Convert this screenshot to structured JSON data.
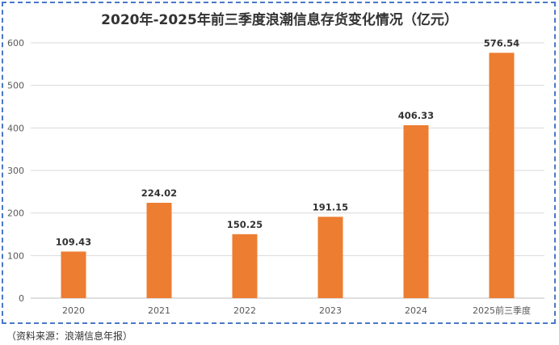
{
  "chart_data": {
    "type": "bar",
    "title": "2020年-2025年前三季度浪潮信息存货变化情况（亿元）",
    "categories": [
      "2020",
      "2021",
      "2022",
      "2023",
      "2024",
      "2025前三季度"
    ],
    "values": [
      109.43,
      224.02,
      150.25,
      191.15,
      406.33,
      576.54
    ],
    "value_labels": [
      "109.43",
      "224.02",
      "150.25",
      "191.15",
      "406.33",
      "576.54"
    ],
    "y_ticks": [
      "0",
      "100",
      "200",
      "300",
      "400",
      "500",
      "600"
    ],
    "ylim": [
      0,
      600
    ],
    "xlabel": "",
    "ylabel": "",
    "grid": true,
    "legend": "none",
    "bar_color": "#ED7D31",
    "grid_color": "#d9d9d9"
  },
  "source": "（资料来源：浪潮信息年报）",
  "frame_color": "#4a78c8"
}
